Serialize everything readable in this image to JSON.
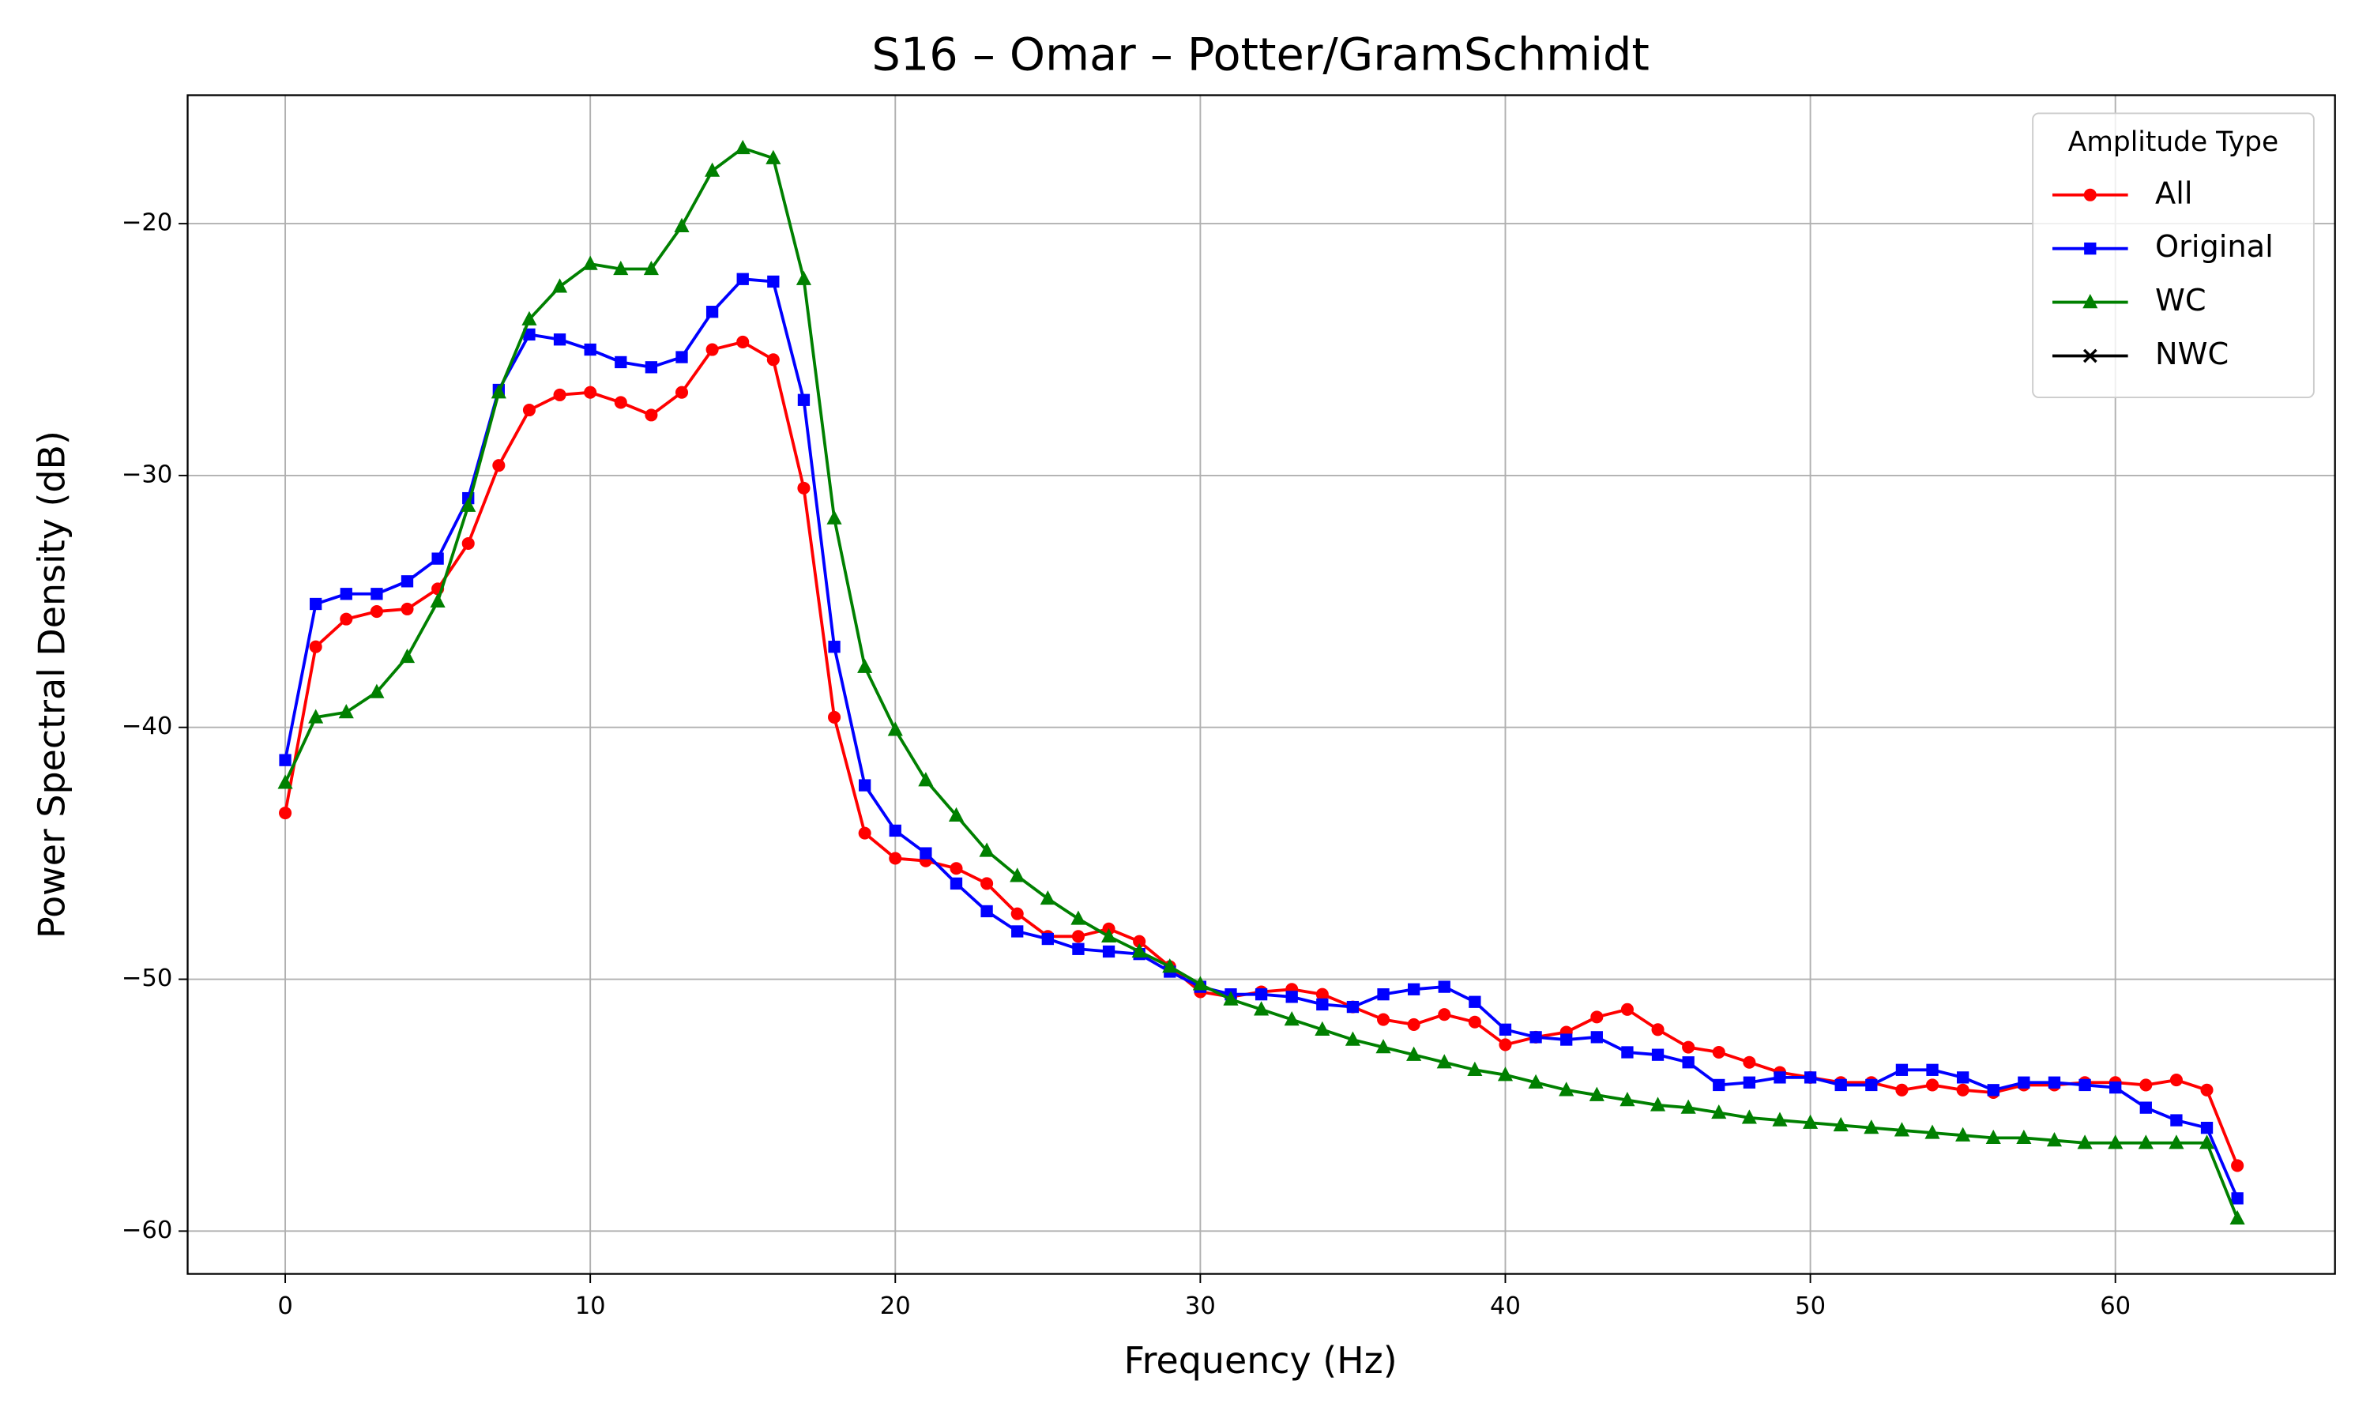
{
  "chart_data": {
    "type": "line",
    "title": "S16 – Omar – Potter/GramSchmidt",
    "xlabel": "Frequency (Hz)",
    "ylabel": "Power Spectral Density (dB)",
    "legend_title": "Amplitude Type",
    "legend": "upper right",
    "grid": true,
    "x": [
      0,
      1,
      2,
      3,
      4,
      5,
      6,
      7,
      8,
      9,
      10,
      11,
      12,
      13,
      14,
      15,
      16,
      17,
      18,
      19,
      20,
      21,
      22,
      23,
      24,
      25,
      26,
      27,
      28,
      29,
      30,
      31,
      32,
      33,
      34,
      35,
      36,
      37,
      38,
      39,
      40,
      41,
      42,
      43,
      44,
      45,
      46,
      47,
      48,
      49,
      50,
      51,
      52,
      53,
      54,
      55,
      56,
      57,
      58,
      59,
      60,
      61,
      62,
      63,
      64
    ],
    "xlim": [
      -3.2,
      67.2
    ],
    "xticks": [
      0,
      10,
      20,
      30,
      40,
      50,
      60
    ],
    "ylim": [
      -61.7,
      -14.9
    ],
    "yticks": [
      {
        "value": -60,
        "label": "−60"
      },
      {
        "value": -50,
        "label": "−50"
      },
      {
        "value": -40,
        "label": "−40"
      },
      {
        "value": -30,
        "label": "−30"
      },
      {
        "value": -20,
        "label": "−20"
      }
    ],
    "series": [
      {
        "name": "All",
        "color": "#ff0000",
        "marker": "o",
        "values": [
          -43.4,
          -36.8,
          -35.7,
          -35.4,
          -35.3,
          -34.5,
          -32.7,
          -29.6,
          -27.4,
          -26.8,
          -26.7,
          -27.1,
          -27.6,
          -26.7,
          -25.0,
          -24.7,
          -25.4,
          -30.5,
          -39.6,
          -44.2,
          -45.2,
          -45.3,
          -45.6,
          -46.2,
          -47.4,
          -48.3,
          -48.3,
          -48.0,
          -48.5,
          -49.5,
          -50.5,
          -50.7,
          -50.5,
          -50.4,
          -50.6,
          -51.1,
          -51.6,
          -51.8,
          -51.4,
          -51.7,
          -52.6,
          -52.3,
          -52.1,
          -51.5,
          -51.2,
          -52.0,
          -52.7,
          -52.9,
          -53.3,
          -53.7,
          -53.9,
          -54.1,
          -54.1,
          -54.4,
          -54.2,
          -54.4,
          -54.5,
          -54.2,
          -54.2,
          -54.1,
          -54.1,
          -54.2,
          -54.0,
          -54.4,
          -57.4
        ]
      },
      {
        "name": "Original",
        "color": "#0000ff",
        "marker": "s",
        "values": [
          -41.3,
          -35.1,
          -34.7,
          -34.7,
          -34.2,
          -33.3,
          -30.9,
          -26.6,
          -24.4,
          -24.6,
          -25.0,
          -25.5,
          -25.7,
          -25.3,
          -23.5,
          -22.2,
          -22.3,
          -27.0,
          -36.8,
          -42.3,
          -44.1,
          -45.0,
          -46.2,
          -47.3,
          -48.1,
          -48.4,
          -48.8,
          -48.9,
          -49.0,
          -49.7,
          -50.3,
          -50.6,
          -50.6,
          -50.7,
          -51.0,
          -51.1,
          -50.6,
          -50.4,
          -50.3,
          -50.9,
          -52.0,
          -52.3,
          -52.4,
          -52.3,
          -52.9,
          -53.0,
          -53.3,
          -54.2,
          -54.1,
          -53.9,
          -53.9,
          -54.2,
          -54.2,
          -53.6,
          -53.6,
          -53.9,
          -54.4,
          -54.1,
          -54.1,
          -54.2,
          -54.3,
          -55.1,
          -55.6,
          -55.9,
          -58.7
        ]
      },
      {
        "name": "WC",
        "color": "#008000",
        "marker": "^",
        "values": [
          -42.2,
          -39.6,
          -39.4,
          -38.6,
          -37.2,
          -35.0,
          -31.2,
          -26.7,
          -23.8,
          -22.5,
          -21.6,
          -21.8,
          -21.8,
          -20.1,
          -17.9,
          -17.0,
          -17.4,
          -22.2,
          -31.7,
          -37.6,
          -40.1,
          -42.1,
          -43.5,
          -44.9,
          -45.9,
          -46.8,
          -47.6,
          -48.3,
          -48.9,
          -49.5,
          -50.2,
          -50.8,
          -51.2,
          -51.6,
          -52.0,
          -52.4,
          -52.7,
          -53.0,
          -53.3,
          -53.6,
          -53.8,
          -54.1,
          -54.4,
          -54.6,
          -54.8,
          -55.0,
          -55.1,
          -55.3,
          -55.5,
          -55.6,
          -55.7,
          -55.8,
          -55.9,
          -56.0,
          -56.1,
          -56.2,
          -56.3,
          -56.3,
          -56.4,
          -56.5,
          -56.5,
          -56.5,
          -56.5,
          -56.5,
          -59.5
        ]
      },
      {
        "name": "NWC",
        "color": "#000000",
        "marker": "x",
        "values": [
          null,
          null,
          null,
          null,
          null,
          null,
          null,
          null,
          null,
          null,
          null,
          null,
          null,
          null,
          null,
          null,
          null,
          null,
          null,
          null,
          null,
          null,
          null,
          null,
          null,
          null,
          null,
          null,
          null,
          null,
          null,
          null,
          null,
          null,
          null,
          null,
          null,
          null,
          null,
          null,
          null,
          null,
          null,
          null,
          null,
          null,
          null,
          null,
          null,
          null,
          null,
          null,
          null,
          null,
          null,
          null,
          null,
          null,
          null,
          null,
          null,
          null,
          null,
          null,
          null
        ]
      }
    ]
  }
}
